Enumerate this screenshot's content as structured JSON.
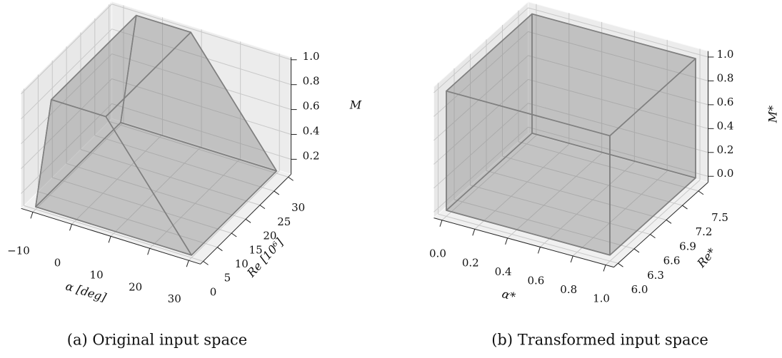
{
  "chart_data": [
    {
      "type": "prism3d",
      "caption": "(a) Original input space",
      "xlabel": "α [deg]",
      "ylabel": "Re [10⁶]",
      "zlabel": "M",
      "profile_x": [
        -10,
        30,
        8,
        -6
      ],
      "profile_z": [
        0.1,
        0.1,
        1.0,
        1.0
      ],
      "y_range": [
        0,
        30
      ],
      "color": "#808080",
      "xlim": [
        -13,
        33
      ],
      "ylim": [
        -1,
        31
      ],
      "zlim": [
        0.08,
        1.02
      ],
      "xticks": [
        {
          "value": -10,
          "label": "−10"
        },
        0,
        10,
        20,
        30
      ],
      "yticks": [
        0,
        5,
        10,
        15,
        20,
        25,
        30
      ],
      "zticks": [
        0.2,
        0.4,
        0.6,
        0.8,
        {
          "value": 1.0,
          "label": "1.0"
        }
      ],
      "grid": true
    },
    {
      "type": "prism3d",
      "caption": "(b) Transformed input space",
      "xlabel": "α*",
      "ylabel": "Re*",
      "zlabel": "M*",
      "profile_x": [
        0,
        1,
        1,
        0
      ],
      "profile_z": [
        0,
        0,
        1,
        1
      ],
      "y_range": [
        6.0,
        7.6
      ],
      "color": "#808080",
      "xlim": [
        -0.05,
        1.05
      ],
      "ylim": [
        5.92,
        7.68
      ],
      "zlim": [
        -0.05,
        1.05
      ],
      "xticks": [
        {
          "value": 0,
          "label": "0.0"
        },
        0.2,
        0.4,
        0.6,
        0.8,
        {
          "value": 1.0,
          "label": "1.0"
        }
      ],
      "yticks": [
        {
          "value": 6.0,
          "label": "6.0"
        },
        6.3,
        6.6,
        6.9,
        7.2,
        7.5
      ],
      "zticks": [
        {
          "value": 0,
          "label": "0.0"
        },
        0.2,
        0.4,
        0.6,
        0.8,
        {
          "value": 1.0,
          "label": "1.0"
        }
      ],
      "grid": true
    }
  ]
}
